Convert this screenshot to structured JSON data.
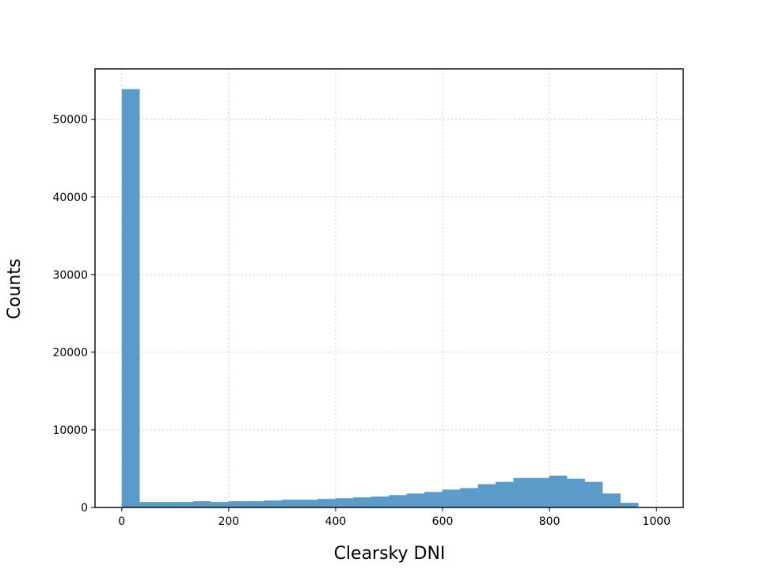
{
  "chart_data": {
    "type": "bar",
    "subtype": "histogram",
    "title": "",
    "xlabel": "Clearsky DNI",
    "ylabel": "Counts",
    "xlim": [
      -50,
      1050
    ],
    "ylim": [
      0,
      56500
    ],
    "x_ticks": [
      0,
      200,
      400,
      600,
      800,
      1000
    ],
    "y_ticks": [
      0,
      10000,
      20000,
      30000,
      40000,
      50000
    ],
    "grid": true,
    "bar_color": "#5b9bc9",
    "bin_edges": [
      0,
      33.3,
      66.6,
      99.9,
      133.2,
      166.5,
      199.8,
      233.1,
      266.4,
      299.7,
      333.0,
      366.3,
      399.6,
      432.9,
      466.2,
      499.5,
      532.8,
      566.1,
      599.4,
      632.7,
      666.0,
      699.3,
      732.6,
      765.9,
      799.2,
      832.5,
      865.8,
      899.1,
      932.4,
      965.7
    ],
    "values": [
      53900,
      700,
      700,
      700,
      800,
      700,
      800,
      800,
      900,
      1000,
      1000,
      1100,
      1200,
      1300,
      1400,
      1600,
      1800,
      2000,
      2300,
      2500,
      3000,
      3300,
      3800,
      3800,
      4100,
      3700,
      3300,
      1800,
      600
    ]
  }
}
